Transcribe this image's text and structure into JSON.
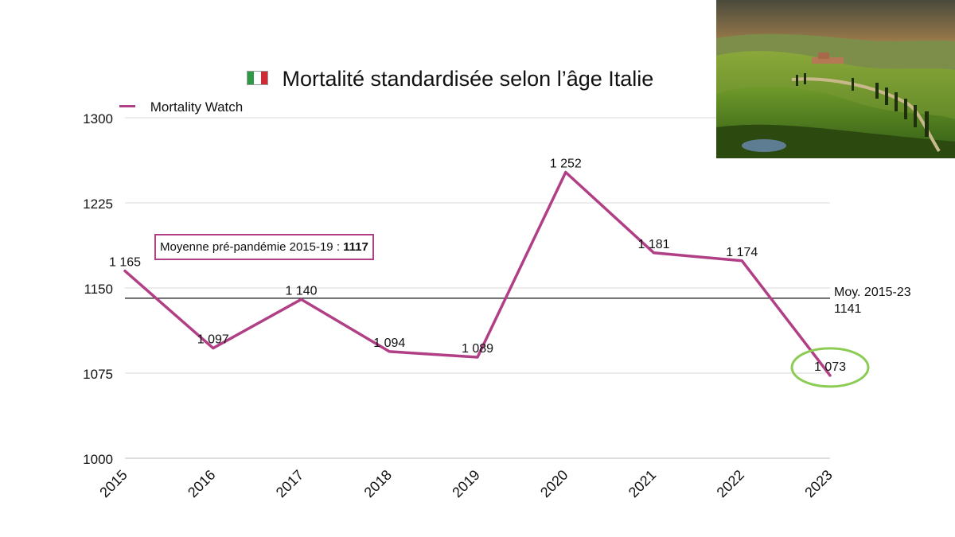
{
  "title": {
    "flag_icon": "italy-flag-icon",
    "text": "Mortalité standardisée selon l’âge Italie"
  },
  "legend": {
    "label": "Mortality Watch",
    "color": "#b13f86"
  },
  "annotation": {
    "prefix": "Moyenne pré-pandémie 2015-19 : ",
    "value": "1117"
  },
  "average_line": {
    "label": "Moy. 2015-23",
    "value": "1141"
  },
  "photo": {
    "icon": "tuscany-landscape-photo"
  },
  "colors": {
    "series": "#b13f86",
    "highlight": "#8ccc55",
    "grid": "#d9d9d9",
    "average_line": "#111111",
    "flag_green": "#2f9a45",
    "flag_white": "#ffffff",
    "flag_red": "#cf2b37"
  },
  "chart_data": {
    "type": "line",
    "title": "Mortalité standardisée selon l’âge Italie",
    "categories": [
      "2015",
      "2016",
      "2017",
      "2018",
      "2019",
      "2020",
      "2021",
      "2022",
      "2023"
    ],
    "series": [
      {
        "name": "Mortality Watch",
        "values": [
          1165,
          1097,
          1140,
          1094,
          1089,
          1252,
          1181,
          1174,
          1073
        ],
        "labels": [
          "1 165",
          "1 097",
          "1 140",
          "1 094",
          "1 089",
          "1 252",
          "1 181",
          "1 174",
          "1 073"
        ]
      }
    ],
    "reference_line": 1141,
    "ylim": [
      1000,
      1300
    ],
    "yticks": [
      1000,
      1075,
      1150,
      1225,
      1300
    ],
    "highlighted_point": "2023",
    "grid": true,
    "legend_position": "top-left",
    "xlabel": "",
    "ylabel": ""
  }
}
